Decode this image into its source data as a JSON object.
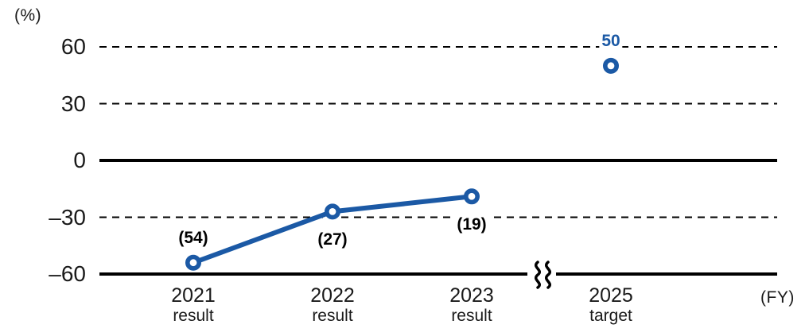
{
  "chart_data": {
    "type": "line",
    "title": "",
    "unit_label": "(%)",
    "fy_label": "(FY)",
    "ylim": [
      -60,
      60
    ],
    "y_ticks": [
      60,
      30,
      0,
      -30,
      -60
    ],
    "y_tick_labels": [
      "60",
      "30",
      "0",
      "–30",
      "–60"
    ],
    "y_solid_ticks": [
      0,
      -60
    ],
    "grid": "horizontal dashed at 60, 30, -30; solid thick at 0 and -60; no vertical grid; legend none",
    "categories": [
      {
        "year": "2021",
        "kind": "result"
      },
      {
        "year": "2022",
        "kind": "result"
      },
      {
        "year": "2023",
        "kind": "result"
      },
      {
        "year": "2025",
        "kind": "target"
      }
    ],
    "series": [
      {
        "name": "result",
        "connected": true,
        "points": [
          {
            "x": "2021",
            "value": -54,
            "label": "(54)",
            "label_pos": "above"
          },
          {
            "x": "2022",
            "value": -27,
            "label": "(27)",
            "label_pos": "below"
          },
          {
            "x": "2023",
            "value": -19,
            "label": "(19)",
            "label_pos": "below"
          }
        ]
      },
      {
        "name": "target",
        "connected": false,
        "points": [
          {
            "x": "2025",
            "value": 50,
            "label": "50",
            "label_pos": "above"
          }
        ]
      }
    ],
    "axis_break": {
      "axis": "-60 baseline",
      "between": [
        "2023",
        "2025"
      ]
    },
    "colors": {
      "line": "#1b59a5",
      "marker_fill": "#ffffff",
      "axis": "#000000",
      "result_label": "#000000",
      "target_label": "#1b59a5",
      "background": "#ffffff"
    }
  }
}
